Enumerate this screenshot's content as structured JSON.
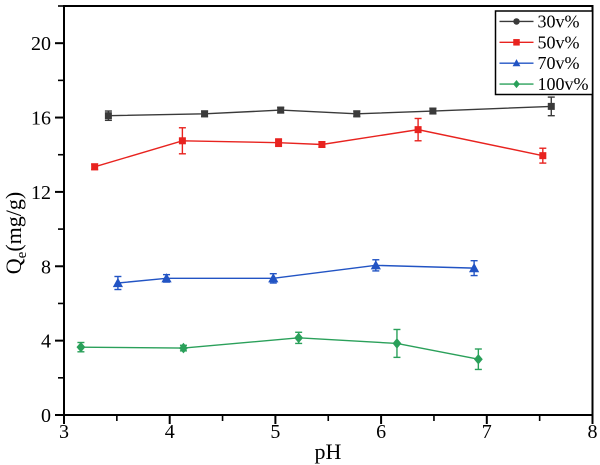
{
  "figure": {
    "background": "#ffffff",
    "axis_color": "#000000"
  },
  "chart_data": {
    "type": "line",
    "title": "",
    "xlabel": "pH",
    "ylabel": "Qe(mg/g)",
    "ylabel_parts": {
      "base": "Q",
      "sub": "e",
      "rest": "(mg/g)"
    },
    "xlim": [
      3,
      8
    ],
    "ylim": [
      0,
      22
    ],
    "x_major_ticks": [
      3,
      4,
      5,
      6,
      7,
      8
    ],
    "x_minor_step": 0.5,
    "y_major_ticks": [
      0,
      4,
      8,
      12,
      16,
      20
    ],
    "y_minor_step": 2,
    "grid": false,
    "legend_position": "top-right",
    "error_bars": true,
    "series": [
      {
        "name": "30v%",
        "color": "#3a3a3a",
        "marker": "square",
        "legend_marker": "circle",
        "x": [
          3.42,
          4.33,
          5.05,
          5.77,
          6.49,
          7.61
        ],
        "y": [
          16.1,
          16.2,
          16.4,
          16.2,
          16.35,
          16.6
        ],
        "yerr": [
          0.25,
          0.15,
          0.15,
          0.15,
          0.15,
          0.5
        ]
      },
      {
        "name": "50v%",
        "color": "#e8231f",
        "marker": "square",
        "legend_marker": "square",
        "x": [
          3.29,
          4.12,
          5.03,
          5.44,
          6.35,
          7.53
        ],
        "y": [
          13.35,
          14.75,
          14.65,
          14.55,
          15.35,
          13.95
        ],
        "yerr": [
          0.15,
          0.7,
          0.2,
          0.15,
          0.6,
          0.4
        ]
      },
      {
        "name": "70v%",
        "color": "#2254c4",
        "marker": "triangle",
        "legend_marker": "triangle",
        "x": [
          3.51,
          3.97,
          4.98,
          5.95,
          6.88
        ],
        "y": [
          7.1,
          7.35,
          7.35,
          8.05,
          7.9
        ],
        "yerr": [
          0.35,
          0.2,
          0.25,
          0.3,
          0.4
        ]
      },
      {
        "name": "100v%",
        "color": "#2aa05a",
        "marker": "diamond",
        "legend_marker": "diamond",
        "x": [
          3.16,
          4.13,
          5.22,
          6.15,
          6.92
        ],
        "y": [
          3.65,
          3.6,
          4.15,
          3.85,
          3.0
        ],
        "yerr": [
          0.25,
          0.15,
          0.3,
          0.75,
          0.55
        ]
      }
    ]
  }
}
